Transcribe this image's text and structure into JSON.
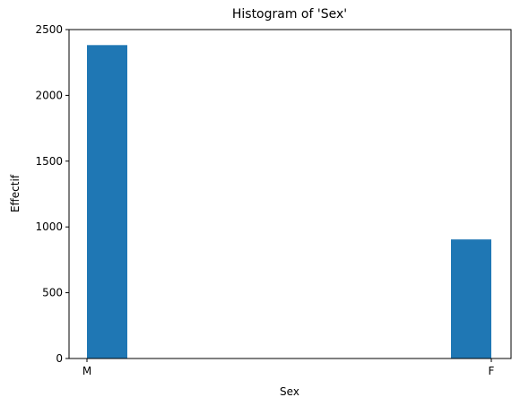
{
  "chart_data": {
    "type": "bar",
    "title": "Histogram of 'Sex'",
    "xlabel": "Sex",
    "ylabel": "Effectif",
    "categories": [
      "M",
      "F"
    ],
    "values": [
      2382,
      905
    ],
    "ylim": [
      0,
      2500
    ],
    "yticks": [
      0,
      500,
      1000,
      1500,
      2000,
      2500
    ],
    "grid": false,
    "bar_color": "#1f77b4"
  }
}
